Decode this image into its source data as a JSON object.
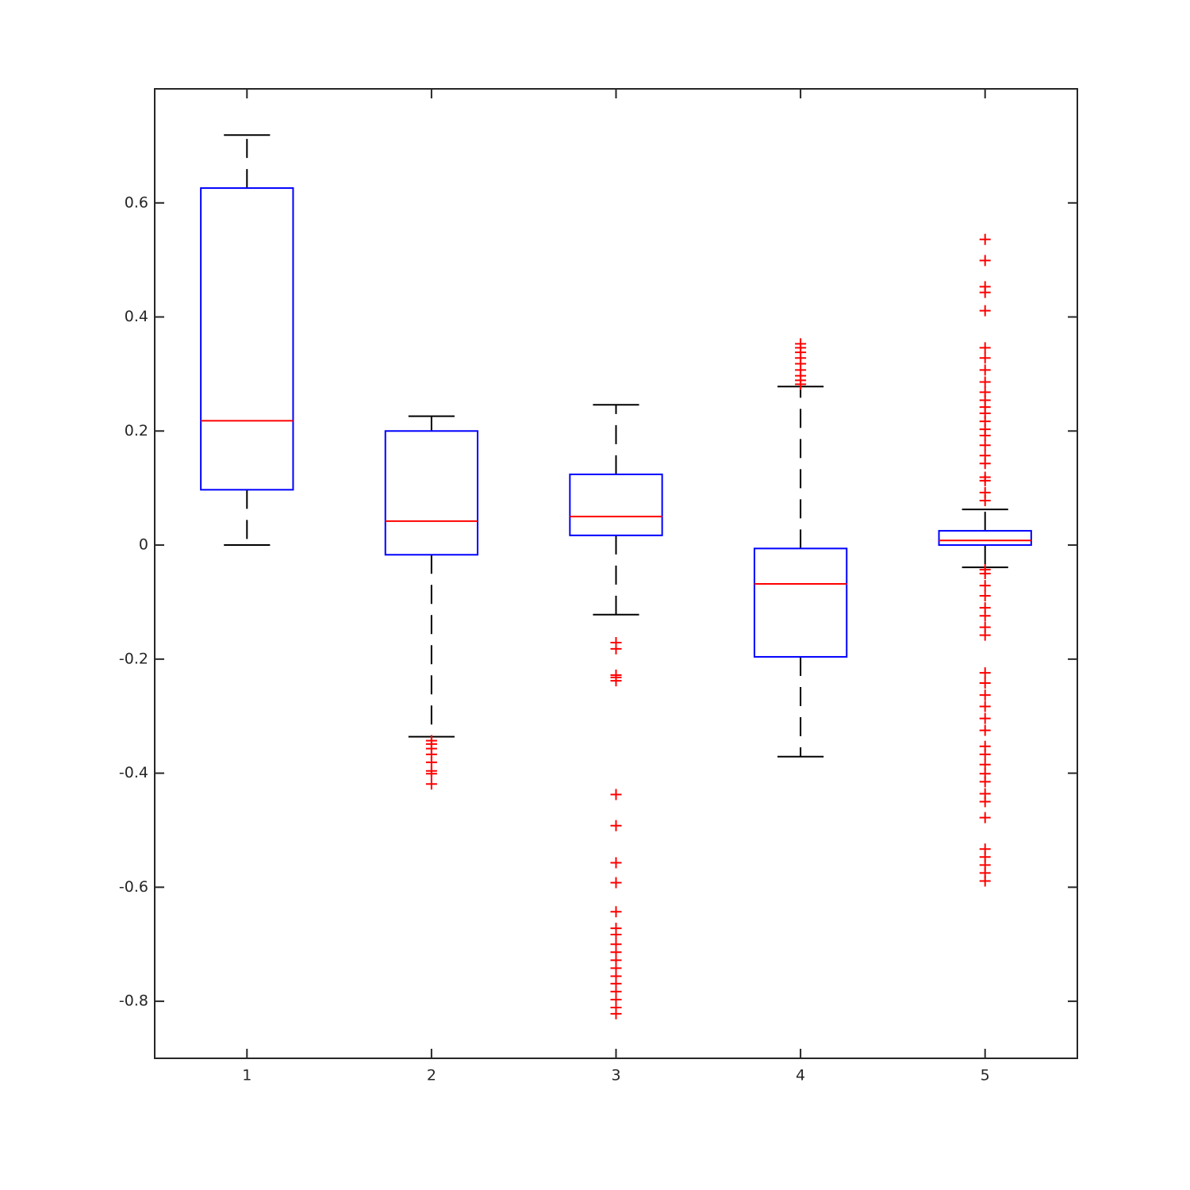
{
  "chart_data": {
    "type": "box",
    "categories": [
      "1",
      "2",
      "3",
      "4",
      "5"
    ],
    "boxes": [
      {
        "whisker_high": 0.719,
        "q3": 0.626,
        "median": 0.218,
        "q1": 0.097,
        "whisker_low": 0.0,
        "outliers": []
      },
      {
        "whisker_high": 0.226,
        "q3": 0.2,
        "median": 0.042,
        "q1": -0.017,
        "whisker_low": -0.336,
        "outliers": [
          -0.343,
          -0.349,
          -0.357,
          -0.367,
          -0.381,
          -0.396,
          -0.401,
          -0.419
        ]
      },
      {
        "whisker_high": 0.246,
        "q3": 0.124,
        "median": 0.05,
        "q1": 0.017,
        "whisker_low": -0.122,
        "outliers": [
          -0.171,
          -0.182,
          -0.228,
          -0.232,
          -0.238,
          -0.4375,
          -0.492,
          -0.557,
          -0.592,
          -0.643,
          -0.672,
          -0.683,
          -0.7,
          -0.714,
          -0.728,
          -0.742,
          -0.756,
          -0.769,
          -0.783,
          -0.797,
          -0.811,
          -0.822
        ]
      },
      {
        "whisker_high": 0.278,
        "q3": -0.006,
        "median": -0.068,
        "q1": -0.196,
        "whisker_low": -0.371,
        "outliers": [
          0.353,
          0.346,
          0.338,
          0.328,
          0.318,
          0.307,
          0.297,
          0.289,
          0.282
        ]
      },
      {
        "whisker_high": 0.0625,
        "q3": 0.025,
        "median": 0.008,
        "q1": 0.0,
        "whisker_low": -0.039,
        "outliers": [
          0.536,
          0.499,
          0.453,
          0.443,
          0.411,
          0.346,
          0.328,
          0.307,
          0.286,
          0.268,
          0.254,
          0.242,
          0.231,
          0.217,
          0.203,
          0.192,
          0.175,
          0.157,
          0.143,
          0.119,
          0.113,
          0.092,
          0.078,
          -0.043,
          -0.05,
          -0.071,
          -0.089,
          -0.11,
          -0.124,
          -0.144,
          -0.158,
          -0.224,
          -0.242,
          -0.263,
          -0.283,
          -0.304,
          -0.325,
          -0.353,
          -0.367,
          -0.385,
          -0.401,
          -0.415,
          -0.436,
          -0.45,
          -0.478,
          -0.533,
          -0.547,
          -0.561,
          -0.575,
          -0.589
        ]
      }
    ],
    "box_color": "#0000ff",
    "median_color": "#ff0000",
    "whisker_color": "#000000",
    "outlier_color": "#ff0000",
    "ylim": [
      -0.9,
      0.8
    ],
    "yticks": [
      -0.8,
      -0.6,
      -0.4,
      -0.2,
      0,
      0.2,
      0.4,
      0.6
    ]
  }
}
